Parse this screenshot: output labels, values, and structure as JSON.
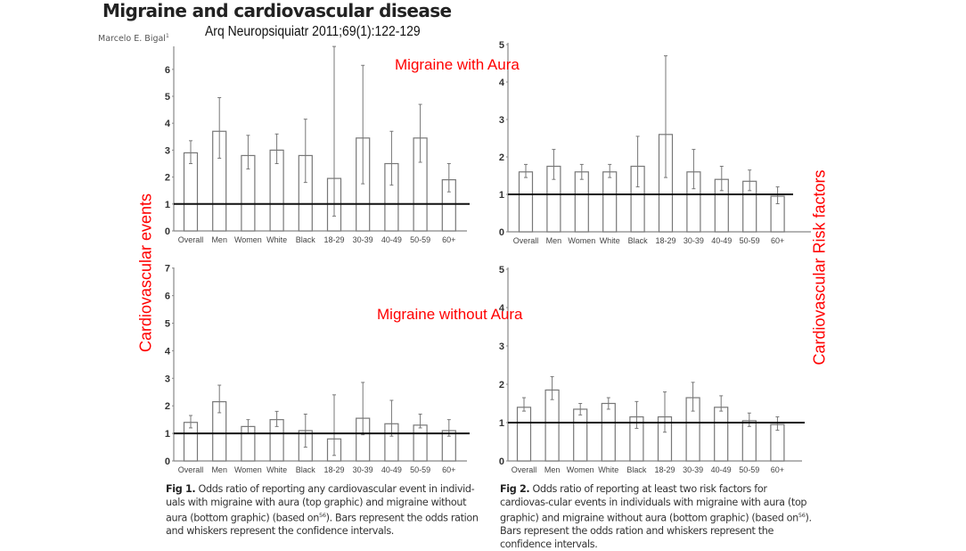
{
  "header": {
    "title": "Migraine and cardiovascular disease",
    "author": "Marcelo E. Bigal",
    "author_sup": "1",
    "journal": "Arq Neuropsiquiatr 2011;69(1):122-129"
  },
  "annotations": {
    "with_aura": "Migraine with Aura",
    "without_aura": "Migraine without Aura",
    "left_axis": "Cardiovascular events",
    "right_axis": "Cardiovascular Risk factors"
  },
  "captions": {
    "fig1_label": "Fig 1.",
    "fig1_text_a": " Odds ratio of reporting any cardiovascular event in individ-uals with migraine with aura (top graphic) and migraine without aura (bottom graphic) (based on",
    "fig1_sup": "56",
    "fig1_text_b": "). Bars represent the odds ration and whiskers represent the confidence intervals.",
    "fig2_label": "Fig 2.",
    "fig2_text_a": " Odds ratio of reporting at least two risk factors for cardiovas-cular events in individuals with migraine with aura (top graphic) and migraine without aura (bottom graphic) (based on",
    "fig2_sup": "56",
    "fig2_text_b": "). Bars represent the odds ration and whiskers represent the confidence intervals."
  },
  "chart_data": [
    {
      "id": "fig1-with-aura",
      "type": "bar",
      "title": "Cardiovascular events - Migraine with Aura",
      "xlabel": "",
      "ylabel": "Odds ratio",
      "categories": [
        "Overall",
        "Men",
        "Women",
        "White",
        "Black",
        "18-29",
        "30-39",
        "40-49",
        "50-59",
        "60+"
      ],
      "values": [
        2.9,
        3.7,
        2.8,
        3.0,
        2.8,
        1.95,
        3.45,
        2.5,
        3.45,
        1.9
      ],
      "ci_lower": [
        2.5,
        2.7,
        2.3,
        2.5,
        1.8,
        0.55,
        1.75,
        1.7,
        2.55,
        1.45
      ],
      "ci_upper": [
        3.35,
        4.95,
        3.55,
        3.6,
        4.15,
        6.85,
        6.15,
        3.7,
        4.7,
        2.5
      ],
      "reference_line": 1,
      "yticks": [
        0,
        1,
        2,
        3,
        4,
        5,
        6
      ],
      "ylim": [
        0,
        6.9
      ]
    },
    {
      "id": "fig2-with-aura",
      "type": "bar",
      "title": "Cardiovascular risk factors - Migraine with Aura",
      "xlabel": "",
      "ylabel": "Odds ratio",
      "categories": [
        "Overall",
        "Men",
        "Women",
        "White",
        "Black",
        "18-29",
        "30-39",
        "40-49",
        "50-59",
        "60+"
      ],
      "values": [
        1.6,
        1.75,
        1.6,
        1.6,
        1.75,
        2.6,
        1.6,
        1.4,
        1.35,
        0.95
      ],
      "ci_lower": [
        1.45,
        1.4,
        1.4,
        1.45,
        1.2,
        1.45,
        1.15,
        1.1,
        1.1,
        0.75
      ],
      "ci_upper": [
        1.8,
        2.2,
        1.8,
        1.8,
        2.55,
        4.7,
        2.2,
        1.75,
        1.65,
        1.2
      ],
      "reference_line": 1,
      "yticks": [
        0,
        1,
        2,
        3,
        4,
        5
      ],
      "ylim": [
        0,
        5
      ]
    },
    {
      "id": "fig1-without-aura",
      "type": "bar",
      "title": "Cardiovascular events - Migraine without Aura",
      "xlabel": "",
      "ylabel": "Odds ratio",
      "categories": [
        "Overall",
        "Men",
        "Women",
        "White",
        "Black",
        "18-29",
        "30-39",
        "40-49",
        "50-59",
        "60+"
      ],
      "values": [
        1.4,
        2.15,
        1.25,
        1.5,
        1.1,
        0.8,
        1.55,
        1.35,
        1.3,
        1.1
      ],
      "ci_lower": [
        1.2,
        1.75,
        1.0,
        1.25,
        0.5,
        0.2,
        0.95,
        0.9,
        1.2,
        0.9
      ],
      "ci_upper": [
        1.65,
        2.75,
        1.5,
        1.8,
        1.7,
        2.4,
        2.85,
        2.2,
        1.7,
        1.5
      ],
      "reference_line": 1,
      "yticks": [
        0,
        1,
        2,
        3,
        4,
        5,
        6,
        7
      ],
      "ylim": [
        0,
        7
      ]
    },
    {
      "id": "fig2-without-aura",
      "type": "bar",
      "title": "Cardiovascular risk factors - Migraine without Aura",
      "xlabel": "",
      "ylabel": "Odds ratio",
      "categories": [
        "Overall",
        "Men",
        "Women",
        "White",
        "Black",
        "18-29",
        "30-39",
        "40-49",
        "50-59",
        "60+"
      ],
      "values": [
        1.4,
        1.85,
        1.35,
        1.5,
        1.15,
        1.15,
        1.65,
        1.4,
        1.05,
        0.95
      ],
      "ci_lower": [
        1.3,
        1.6,
        1.2,
        1.35,
        0.85,
        0.75,
        1.3,
        1.3,
        0.9,
        0.8
      ],
      "ci_upper": [
        1.65,
        2.2,
        1.5,
        1.65,
        1.55,
        1.8,
        2.05,
        1.7,
        1.25,
        1.15
      ],
      "reference_line": 1,
      "yticks": [
        0,
        1,
        2,
        3,
        4,
        5
      ],
      "ylim": [
        0,
        5
      ]
    }
  ]
}
